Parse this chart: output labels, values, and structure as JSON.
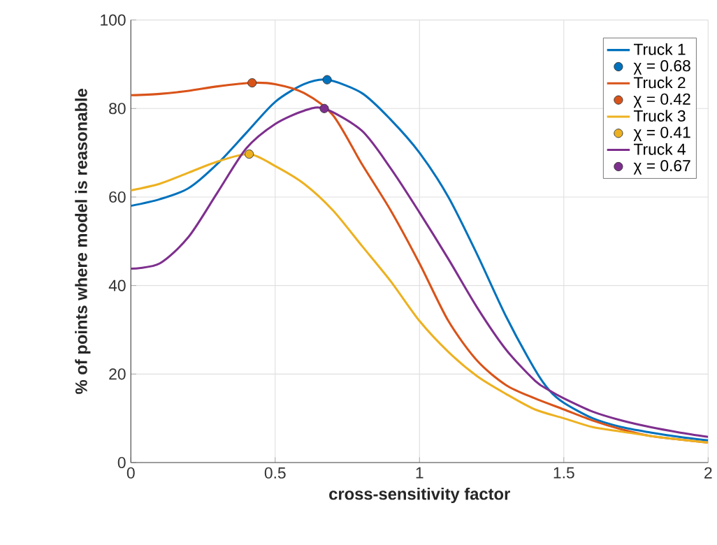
{
  "chart_data": {
    "type": "line",
    "xlabel": "cross-sensitivity factor",
    "ylabel": "% of points where model is reasonable",
    "xlim": [
      0,
      2
    ],
    "ylim": [
      0,
      100
    ],
    "xticks": [
      0,
      0.5,
      1,
      1.5,
      2
    ],
    "yticks": [
      0,
      20,
      40,
      60,
      80,
      100
    ],
    "grid": true,
    "legend": "top right",
    "series": [
      {
        "name": "Truck 1",
        "color": "#0072bd",
        "x": [
          0,
          0.1,
          0.2,
          0.3,
          0.4,
          0.5,
          0.6,
          0.68,
          0.8,
          0.9,
          1.0,
          1.1,
          1.2,
          1.3,
          1.4,
          1.45,
          1.5,
          1.6,
          1.7,
          1.8,
          1.9,
          2.0
        ],
        "values": [
          58,
          59.5,
          62,
          67.5,
          74.5,
          81.5,
          85.5,
          86.5,
          83.5,
          77.5,
          70,
          60,
          47,
          33,
          21,
          16.3,
          13.5,
          10,
          8,
          6.8,
          5.8,
          5
        ]
      },
      {
        "name": "χ =  0.68",
        "type": "scatter",
        "color": "#0072bd",
        "x": [
          0.68
        ],
        "values": [
          86.5
        ]
      },
      {
        "name": "Truck 2",
        "color": "#d95319",
        "x": [
          0,
          0.1,
          0.2,
          0.3,
          0.42,
          0.5,
          0.6,
          0.7,
          0.8,
          0.9,
          1.0,
          1.1,
          1.2,
          1.3,
          1.4,
          1.5,
          1.6,
          1.7,
          1.8,
          1.9,
          2.0
        ],
        "values": [
          83,
          83.3,
          84,
          85,
          85.8,
          85.5,
          83.5,
          78.5,
          67.5,
          57,
          45,
          32,
          23,
          17.5,
          14.5,
          12,
          9.5,
          7.5,
          6,
          5.2,
          4.5
        ]
      },
      {
        "name": "χ =  0.42",
        "type": "scatter",
        "color": "#d95319",
        "x": [
          0.42
        ],
        "values": [
          85.8
        ]
      },
      {
        "name": "Truck 3",
        "color": "#edb120",
        "x": [
          0,
          0.1,
          0.2,
          0.3,
          0.41,
          0.5,
          0.6,
          0.7,
          0.8,
          0.9,
          1.0,
          1.1,
          1.2,
          1.3,
          1.4,
          1.5,
          1.6,
          1.7,
          1.8,
          1.9,
          2.0
        ],
        "values": [
          61.5,
          63,
          65.5,
          68,
          69.7,
          67,
          63,
          57,
          49,
          41,
          32,
          25,
          19.5,
          15.5,
          12,
          10,
          8,
          7,
          6,
          5.2,
          4.5
        ]
      },
      {
        "name": "χ =  0.41",
        "type": "scatter",
        "color": "#edb120",
        "x": [
          0.41
        ],
        "values": [
          69.7
        ]
      },
      {
        "name": "Truck 4",
        "color": "#7e2f8e",
        "x": [
          0,
          0.1,
          0.2,
          0.3,
          0.4,
          0.5,
          0.6,
          0.67,
          0.8,
          0.9,
          1.0,
          1.1,
          1.2,
          1.3,
          1.4,
          1.45,
          1.5,
          1.6,
          1.7,
          1.8,
          1.9,
          2.0
        ],
        "values": [
          43.8,
          45,
          51,
          61,
          71,
          76.5,
          79.5,
          80,
          75,
          66.5,
          56.5,
          46,
          35,
          25.5,
          18.5,
          16.3,
          14.5,
          11.5,
          9.5,
          8,
          6.8,
          5.8
        ]
      },
      {
        "name": "χ =  0.67",
        "type": "scatter",
        "color": "#7e2f8e",
        "x": [
          0.67
        ],
        "values": [
          80
        ]
      }
    ]
  }
}
